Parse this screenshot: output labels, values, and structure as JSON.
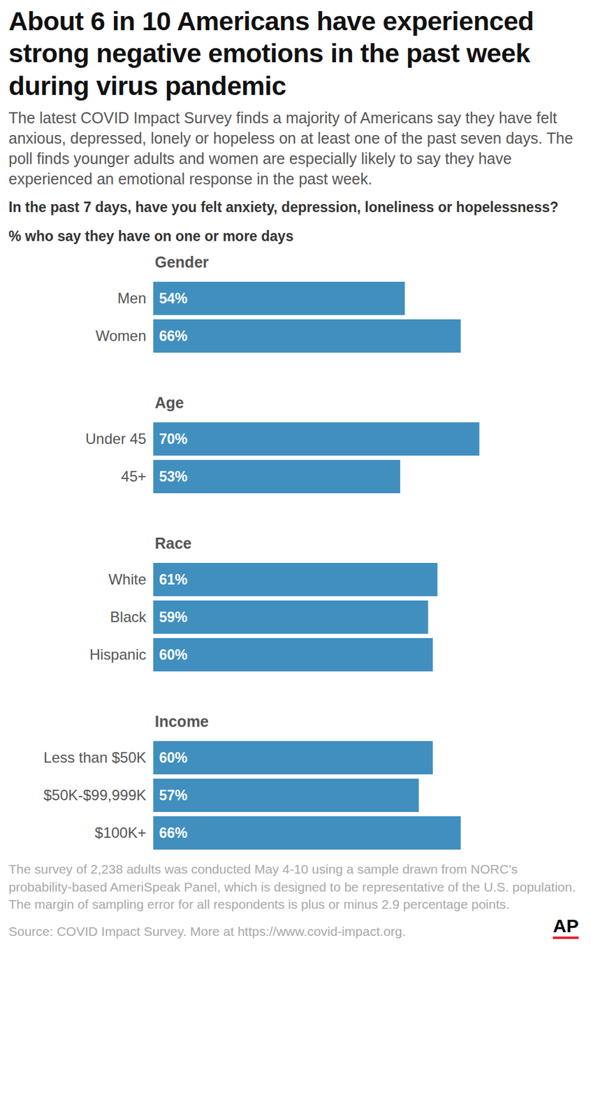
{
  "chart_data": {
    "type": "bar",
    "orientation": "horizontal",
    "title": "About 6 in 10 Americans have experienced strong negative emotions in the past week during virus pandemic",
    "subtitle": "The latest COVID Impact Survey finds a majority of Americans say they have felt anxious, depressed, lonely or hopeless on at least one of the past seven days. The poll finds younger adults and women are especially likely to say they have experienced an emotional response in the past week.",
    "question": "In the past 7 days, have you felt anxiety, depression, loneliness or hopelessness?",
    "value_description": "% who say they have on one or more days",
    "groups": [
      {
        "name": "Gender",
        "categories": [
          "Men",
          "Women"
        ],
        "values": [
          54,
          66
        ],
        "value_labels": [
          "54%",
          "66%"
        ]
      },
      {
        "name": "Age",
        "categories": [
          "Under 45",
          "45+"
        ],
        "values": [
          70,
          53
        ],
        "value_labels": [
          "70%",
          "53%"
        ]
      },
      {
        "name": "Race",
        "categories": [
          "White",
          "Black",
          "Hispanic"
        ],
        "values": [
          61,
          59,
          60
        ],
        "value_labels": [
          "61%",
          "59%",
          "60%"
        ]
      },
      {
        "name": "Income",
        "categories": [
          "Less than $50K",
          "$50K-$99,999K",
          "$100K+"
        ],
        "values": [
          60,
          57,
          66
        ],
        "value_labels": [
          "60%",
          "57%",
          "66%"
        ]
      }
    ],
    "xlim": [
      0,
      90
    ],
    "color": "#408fbf",
    "data_labels": true,
    "tick_labels": false,
    "grid": false,
    "note": "The survey of 2,238 adults was conducted May 4-10 using a sample drawn from NORC's probability-based AmeriSpeak Panel, which is designed to be representative of the U.S. population. The margin of sampling error for all respondents is plus or minus 2.9 percentage points.",
    "source": "Source: COVID Impact Survey. More at https://www.covid-impact.org.",
    "logo": "AP"
  }
}
